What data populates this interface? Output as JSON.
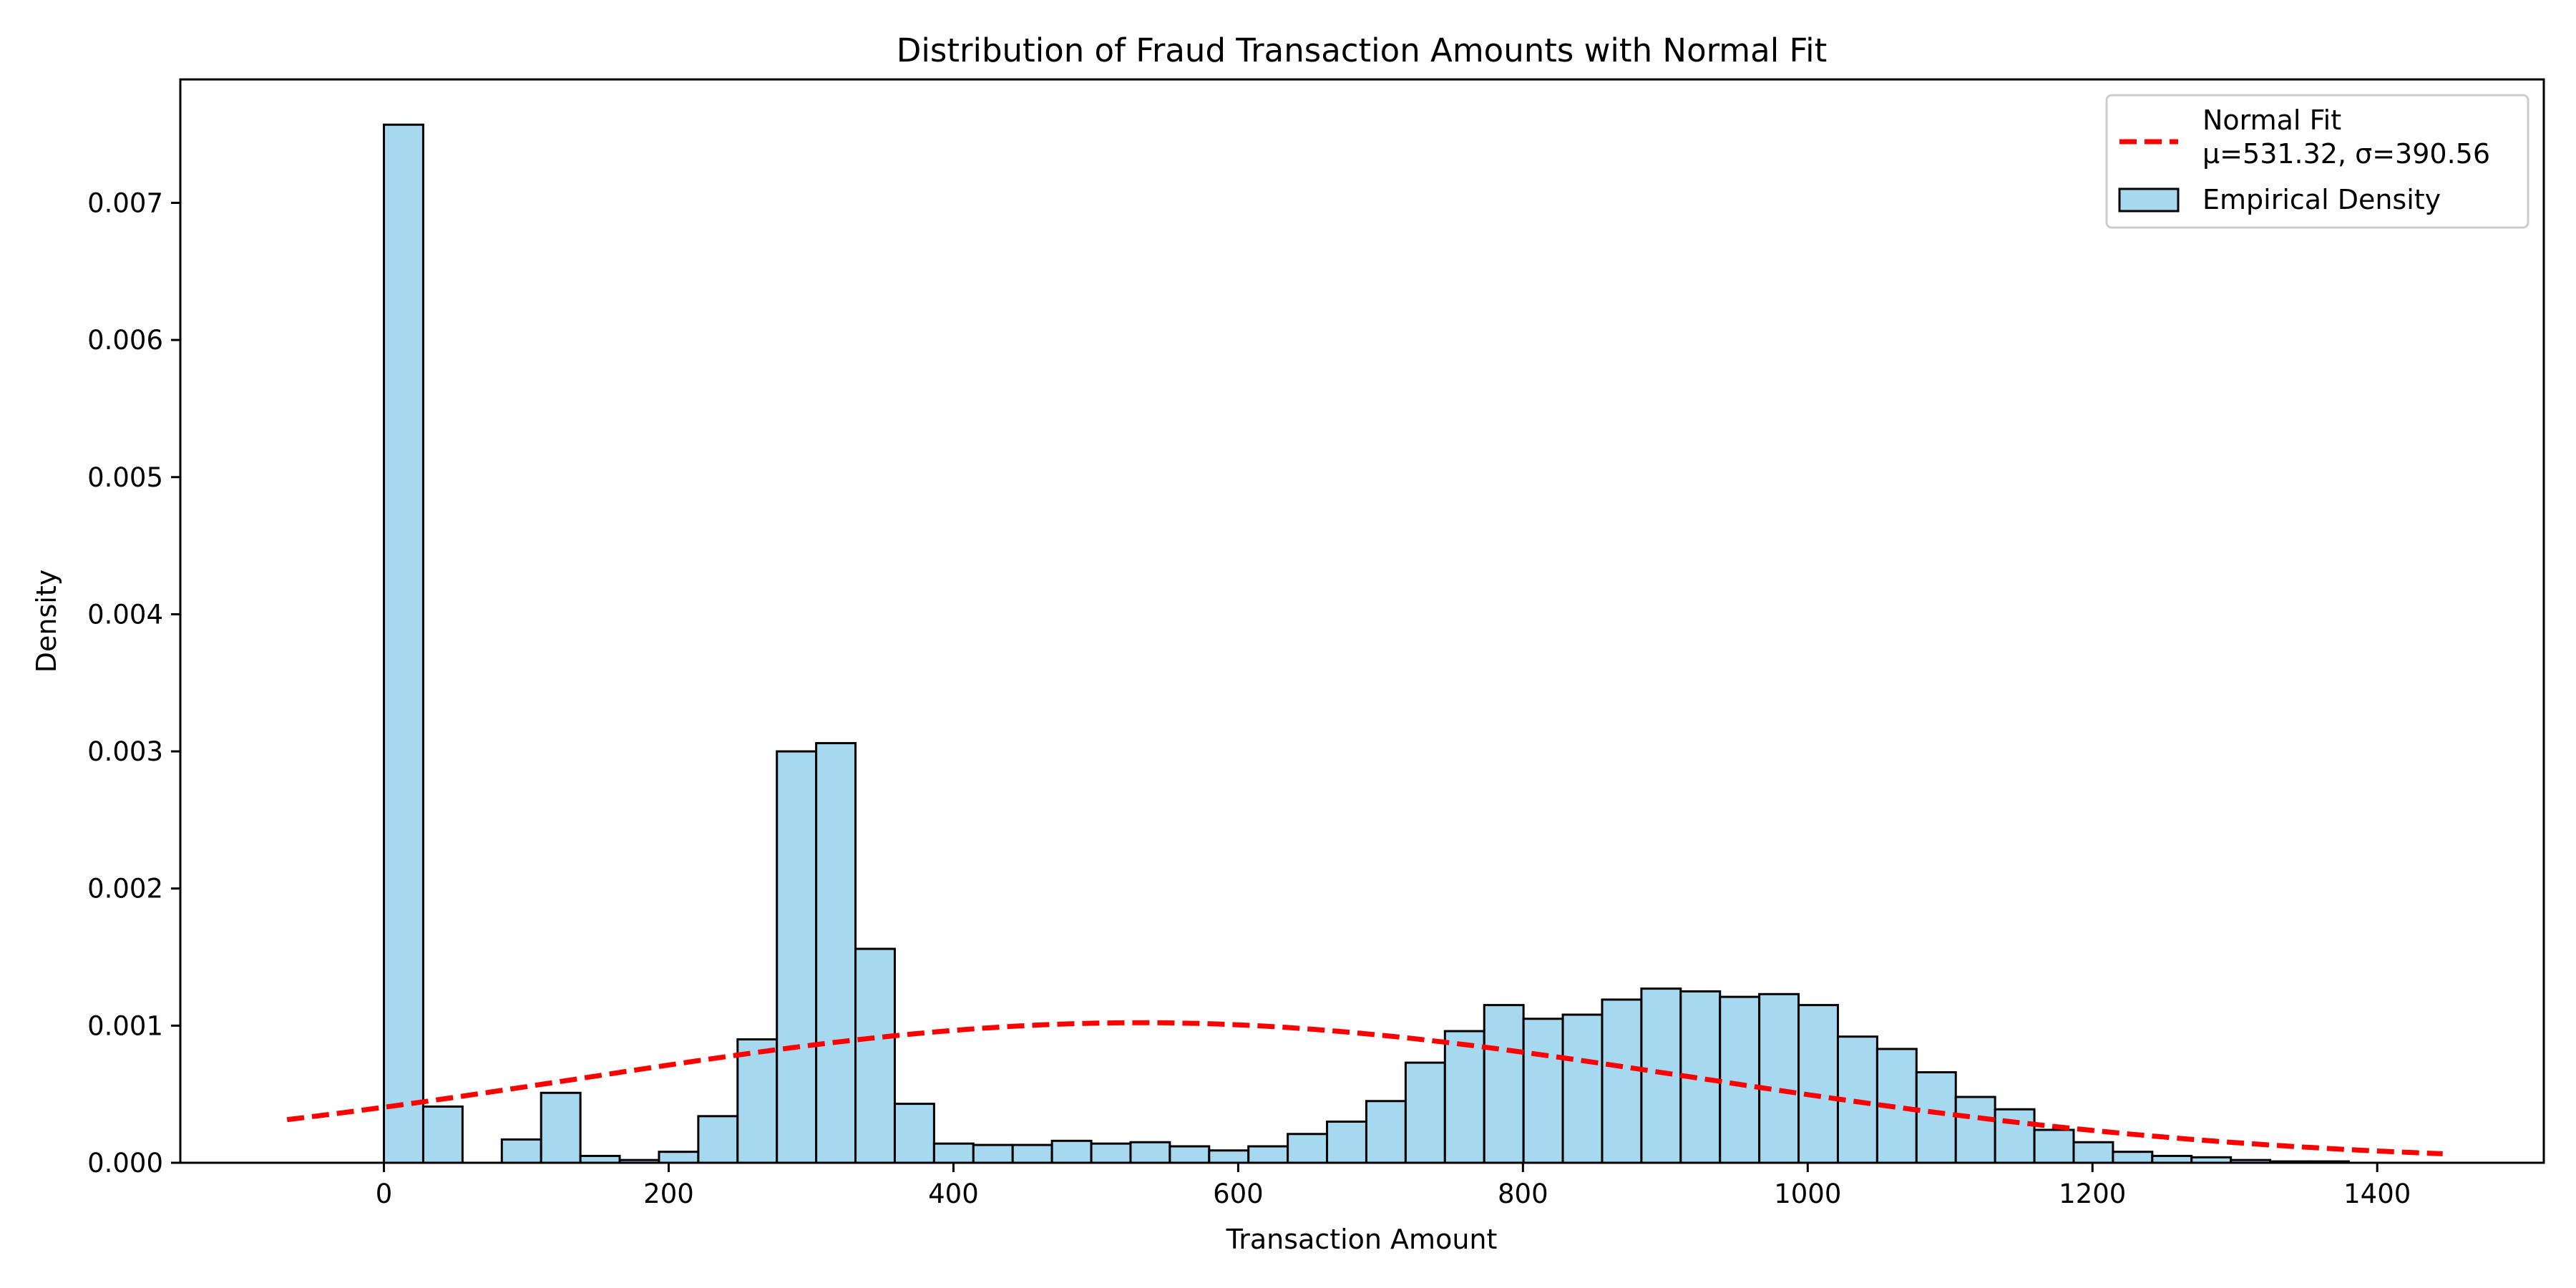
{
  "chart_data": {
    "type": "bar",
    "title": "Distribution of Fraud Transaction Amounts with Normal Fit",
    "xlabel": "Transaction Amount",
    "ylabel": "Density",
    "xlim": [
      -143,
      1517
    ],
    "ylim": [
      0,
      0.0079
    ],
    "x_ticks": [
      0,
      200,
      400,
      600,
      800,
      1000,
      1200,
      1400
    ],
    "y_ticks": [
      0.0,
      0.001,
      0.002,
      0.003,
      0.004,
      0.005,
      0.006,
      0.007
    ],
    "y_tick_labels": [
      "0.000",
      "0.001",
      "0.002",
      "0.003",
      "0.004",
      "0.005",
      "0.006",
      "0.007"
    ],
    "grid": false,
    "legend_position": "top-right",
    "histogram": {
      "name": "Empirical Density",
      "bin_width": 27.6,
      "bin_start": 0,
      "fill": "#a6d8ef",
      "edge": "#000000",
      "values": [
        0.00757,
        0.00041,
        0.0,
        0.00017,
        0.00051,
        5e-05,
        2e-05,
        8e-05,
        0.00034,
        0.0009,
        0.003,
        0.00306,
        0.00156,
        0.00043,
        0.00014,
        0.00013,
        0.00013,
        0.00016,
        0.00014,
        0.00015,
        0.00012,
        9e-05,
        0.00012,
        0.00021,
        0.0003,
        0.00045,
        0.00073,
        0.00096,
        0.00115,
        0.00105,
        0.00108,
        0.00119,
        0.00127,
        0.00125,
        0.00121,
        0.00123,
        0.00115,
        0.00092,
        0.00083,
        0.00066,
        0.00048,
        0.00039,
        0.00024,
        0.00015,
        8e-05,
        5e-05,
        4e-05,
        2e-05,
        1e-05,
        1e-05
      ]
    },
    "normal_fit": {
      "name": "Normal Fit",
      "label_line2": "μ=531.32, σ=390.56",
      "mu": 531.32,
      "sigma": 390.56,
      "x_range": [
        -68,
        1446
      ],
      "color": "#ff0000",
      "style": "dashed"
    },
    "legend": [
      {
        "label": "Normal Fit",
        "label_line2": "μ=531.32, σ=390.56",
        "kind": "line"
      },
      {
        "label": "Empirical Density",
        "kind": "patch"
      }
    ]
  }
}
